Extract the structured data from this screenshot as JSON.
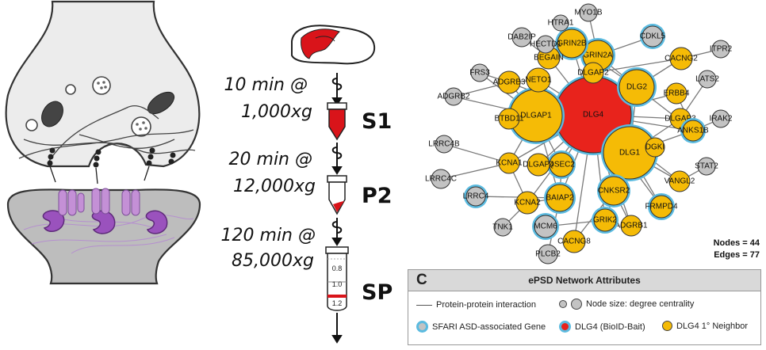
{
  "protocol": {
    "steps": [
      {
        "time": "10 min @",
        "force": "1,000xg",
        "fraction": "S1"
      },
      {
        "time": "20 min @",
        "force": "12,000xg",
        "fraction": "P2"
      },
      {
        "time": "120 min @",
        "force": "85,000xg",
        "fraction": "SP"
      }
    ],
    "gradient_marks": [
      "0.8",
      "1.0",
      "1.2"
    ]
  },
  "network": {
    "nodes": [
      {
        "name": "DLG4",
        "class": "bait"
      },
      {
        "name": "DLGAP1",
        "class": "neighbor-sfari"
      },
      {
        "name": "DLG1",
        "class": "neighbor-sfari"
      },
      {
        "name": "DLG2",
        "class": "neighbor-sfari"
      },
      {
        "name": "GRIN2A",
        "class": "neighbor-sfari"
      },
      {
        "name": "GRIN2B",
        "class": "neighbor-sfari"
      },
      {
        "name": "NETO1",
        "class": "neighbor"
      },
      {
        "name": "BEGAIN",
        "class": "neighbor"
      },
      {
        "name": "DLGAP2",
        "class": "neighbor"
      },
      {
        "name": "CACNG2",
        "class": "neighbor"
      },
      {
        "name": "ERBB4",
        "class": "neighbor"
      },
      {
        "name": "DLGAP3",
        "class": "neighbor"
      },
      {
        "name": "ANKS1B",
        "class": "neighbor-sfari"
      },
      {
        "name": "DGKI",
        "class": "neighbor"
      },
      {
        "name": "VANGL2",
        "class": "neighbor"
      },
      {
        "name": "FRMPD4",
        "class": "neighbor-sfari"
      },
      {
        "name": "ADGRB1",
        "class": "neighbor"
      },
      {
        "name": "GRIK2",
        "class": "neighbor-sfari"
      },
      {
        "name": "CACNG8",
        "class": "neighbor"
      },
      {
        "name": "CNKSR2",
        "class": "neighbor-sfari"
      },
      {
        "name": "BAIAP2",
        "class": "neighbor-sfari"
      },
      {
        "name": "KCNA2",
        "class": "neighbor"
      },
      {
        "name": "QSEC2",
        "class": "neighbor-sfari"
      },
      {
        "name": "DLGAP4",
        "class": "neighbor"
      },
      {
        "name": "KCNA1",
        "class": "neighbor"
      },
      {
        "name": "BTBD11",
        "class": "neighbor"
      },
      {
        "name": "ADGRB3",
        "class": "neighbor"
      },
      {
        "name": "MYO1B",
        "class": "other"
      },
      {
        "name": "HTRA1",
        "class": "other"
      },
      {
        "name": "DAB2IP",
        "class": "other"
      },
      {
        "name": "HECTD1",
        "class": "other"
      },
      {
        "name": "CDKL5",
        "class": "other-sfari"
      },
      {
        "name": "ITPR2",
        "class": "other"
      },
      {
        "name": "LATS2",
        "class": "other"
      },
      {
        "name": "IRAK2",
        "class": "other"
      },
      {
        "name": "STAT2",
        "class": "other"
      },
      {
        "name": "FRS3",
        "class": "other"
      },
      {
        "name": "ADGRB2",
        "class": "other"
      },
      {
        "name": "LRRC4B",
        "class": "other"
      },
      {
        "name": "LRRC4C",
        "class": "other"
      },
      {
        "name": "LRRC4",
        "class": "other-sfari"
      },
      {
        "name": "TNK1",
        "class": "other"
      },
      {
        "name": "MCM6",
        "class": "other-sfari"
      },
      {
        "name": "PLCB2",
        "class": "other"
      }
    ],
    "stats": {
      "nodes": "Nodes = 44",
      "edges": "Edges = 77"
    }
  },
  "legend": {
    "panel_label": "C",
    "title": "ePSD Network Attributes",
    "ppi": "Protein-protein interaction",
    "node_size": "Node size: degree centrality",
    "sfari": "SFARI ASD-associated Gene",
    "bait": "DLG4 (BioID-Bait)",
    "neighbor": "DLG4 1° Neighbor"
  },
  "colors": {
    "bait": "#e8231c",
    "neighbor": "#f5bb06",
    "other": "#c3c3c3",
    "sfari_ring": "#5bbbe0",
    "edge": "#7a7a7a",
    "vesicle": "#9a52bd",
    "receptor": "#c490d6",
    "brain_red": "#d9141a"
  }
}
